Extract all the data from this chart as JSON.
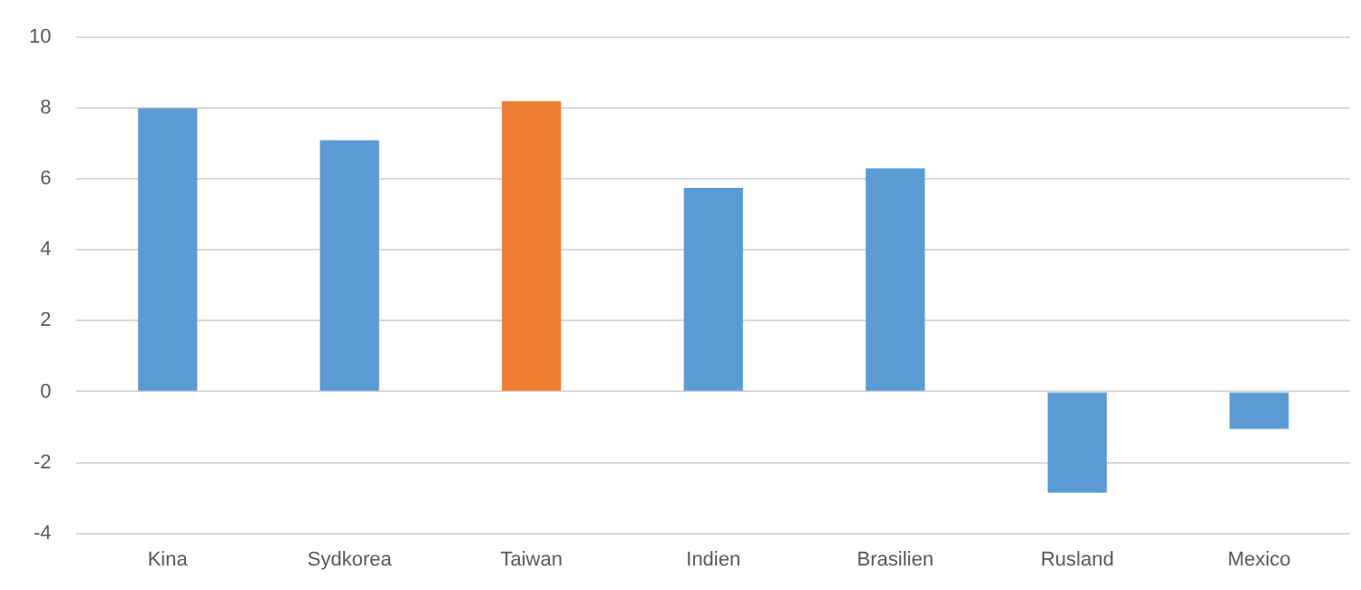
{
  "chart_data": {
    "type": "bar",
    "categories": [
      "Kina",
      "Sydkorea",
      "Taiwan",
      "Indien",
      "Brasilien",
      "Rusland",
      "Mexico"
    ],
    "values": [
      8.0,
      7.1,
      8.2,
      5.75,
      6.3,
      -2.85,
      -1.05
    ],
    "colors": [
      "#5b9bd5",
      "#5b9bd5",
      "#ed7d31",
      "#5b9bd5",
      "#5b9bd5",
      "#5b9bd5",
      "#5b9bd5"
    ],
    "ylim": [
      -4,
      10
    ],
    "yticks": [
      -4,
      -2,
      0,
      2,
      4,
      6,
      8,
      10
    ],
    "grid": "y",
    "legend": false
  }
}
